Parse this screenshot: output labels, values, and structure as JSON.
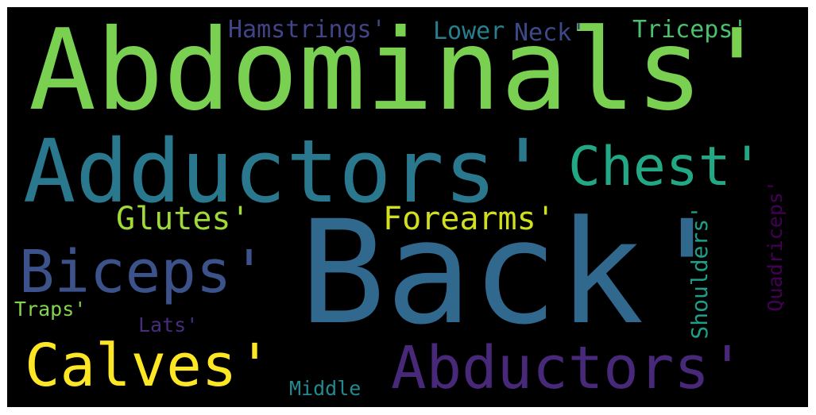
{
  "words": [
    {
      "key": "abdominals",
      "text": "Abdominals'",
      "color": "#7ad151"
    },
    {
      "key": "adductors",
      "text": "Adductors'",
      "color": "#2a788e"
    },
    {
      "key": "chest",
      "text": "Chest'",
      "color": "#22a884"
    },
    {
      "key": "back",
      "text": "Back'",
      "color": "#31688e"
    },
    {
      "key": "biceps",
      "text": "Biceps'",
      "color": "#3b528b"
    },
    {
      "key": "calves",
      "text": "Calves'",
      "color": "#fde725"
    },
    {
      "key": "abductors",
      "text": "Abductors'",
      "color": "#482878"
    },
    {
      "key": "glutes",
      "text": "Glutes'",
      "color": "#a0da39"
    },
    {
      "key": "forearms",
      "text": "Forearms'",
      "color": "#d0e11c"
    },
    {
      "key": "hamstrings",
      "text": "Hamstrings'",
      "color": "#414487"
    },
    {
      "key": "lower",
      "text": "Lower",
      "color": "#277f8e"
    },
    {
      "key": "neck",
      "text": "Neck'",
      "color": "#3e4989"
    },
    {
      "key": "triceps",
      "text": "Triceps'",
      "color": "#4ac16d"
    },
    {
      "key": "shoulders",
      "text": "Shoulders'",
      "color": "#1f9e89"
    },
    {
      "key": "quadriceps",
      "text": "Quadriceps'",
      "color": "#440154"
    },
    {
      "key": "traps",
      "text": "Traps'",
      "color": "#84d44b"
    },
    {
      "key": "lats",
      "text": "Lats'",
      "color": "#472d7b"
    },
    {
      "key": "middle",
      "text": "Middle",
      "color": "#23898e"
    }
  ]
}
